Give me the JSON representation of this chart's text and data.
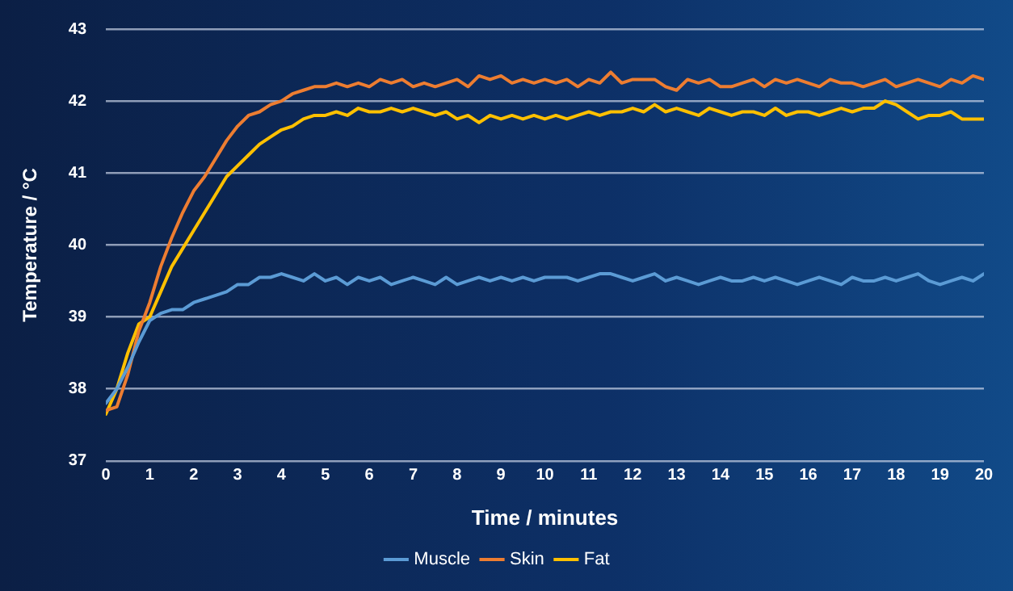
{
  "chart_data": {
    "type": "line",
    "xlabel": "Time / minutes",
    "ylabel": "Temperature / °C",
    "x": [
      0,
      0.25,
      0.5,
      0.75,
      1,
      1.25,
      1.5,
      1.75,
      2,
      2.25,
      2.5,
      2.75,
      3,
      3.25,
      3.5,
      3.75,
      4,
      4.25,
      4.5,
      4.75,
      5,
      5.25,
      5.5,
      5.75,
      6,
      6.25,
      6.5,
      6.75,
      7,
      7.25,
      7.5,
      7.75,
      8,
      8.25,
      8.5,
      8.75,
      9,
      9.25,
      9.5,
      9.75,
      10,
      10.25,
      10.5,
      10.75,
      11,
      11.25,
      11.5,
      11.75,
      12,
      12.25,
      12.5,
      12.75,
      13,
      13.25,
      13.5,
      13.75,
      14,
      14.25,
      14.5,
      14.75,
      15,
      15.25,
      15.5,
      15.75,
      16,
      16.25,
      16.5,
      16.75,
      17,
      17.25,
      17.5,
      17.75,
      18,
      18.25,
      18.5,
      18.75,
      19,
      19.25,
      19.5,
      19.75,
      20
    ],
    "series": [
      {
        "name": "Muscle",
        "color": "#5b9bd5",
        "values": [
          37.8,
          38.0,
          38.3,
          38.65,
          38.95,
          39.05,
          39.1,
          39.1,
          39.2,
          39.25,
          39.3,
          39.35,
          39.45,
          39.45,
          39.55,
          39.55,
          39.6,
          39.55,
          39.5,
          39.6,
          39.5,
          39.55,
          39.45,
          39.55,
          39.5,
          39.55,
          39.45,
          39.5,
          39.55,
          39.5,
          39.45,
          39.55,
          39.45,
          39.5,
          39.55,
          39.5,
          39.55,
          39.5,
          39.55,
          39.5,
          39.55,
          39.55,
          39.55,
          39.5,
          39.55,
          39.6,
          39.6,
          39.55,
          39.5,
          39.55,
          39.6,
          39.5,
          39.55,
          39.5,
          39.45,
          39.5,
          39.55,
          39.5,
          39.5,
          39.55,
          39.5,
          39.55,
          39.5,
          39.45,
          39.5,
          39.55,
          39.5,
          39.45,
          39.55,
          39.5,
          39.5,
          39.55,
          39.5,
          39.55,
          39.6,
          39.5,
          39.45,
          39.5,
          39.55,
          39.5,
          39.6
        ]
      },
      {
        "name": "Skin",
        "color": "#ed7d31",
        "values": [
          37.7,
          37.75,
          38.2,
          38.8,
          39.2,
          39.7,
          40.1,
          40.45,
          40.75,
          40.95,
          41.2,
          41.45,
          41.65,
          41.8,
          41.85,
          41.95,
          42.0,
          42.1,
          42.15,
          42.2,
          42.2,
          42.25,
          42.2,
          42.25,
          42.2,
          42.3,
          42.25,
          42.3,
          42.2,
          42.25,
          42.2,
          42.25,
          42.3,
          42.2,
          42.35,
          42.3,
          42.35,
          42.25,
          42.3,
          42.25,
          42.3,
          42.25,
          42.3,
          42.2,
          42.3,
          42.25,
          42.4,
          42.25,
          42.3,
          42.3,
          42.3,
          42.2,
          42.15,
          42.3,
          42.25,
          42.3,
          42.2,
          42.2,
          42.25,
          42.3,
          42.2,
          42.3,
          42.25,
          42.3,
          42.25,
          42.2,
          42.3,
          42.25,
          42.25,
          42.2,
          42.25,
          42.3,
          42.2,
          42.25,
          42.3,
          42.25,
          42.2,
          42.3,
          42.25,
          42.35,
          42.3
        ]
      },
      {
        "name": "Fat",
        "color": "#ffc000",
        "values": [
          37.65,
          38.0,
          38.5,
          38.9,
          39.0,
          39.35,
          39.7,
          39.95,
          40.2,
          40.45,
          40.7,
          40.95,
          41.1,
          41.25,
          41.4,
          41.5,
          41.6,
          41.65,
          41.75,
          41.8,
          41.8,
          41.85,
          41.8,
          41.9,
          41.85,
          41.85,
          41.9,
          41.85,
          41.9,
          41.85,
          41.8,
          41.85,
          41.75,
          41.8,
          41.7,
          41.8,
          41.75,
          41.8,
          41.75,
          41.8,
          41.75,
          41.8,
          41.75,
          41.8,
          41.85,
          41.8,
          41.85,
          41.85,
          41.9,
          41.85,
          41.95,
          41.85,
          41.9,
          41.85,
          41.8,
          41.9,
          41.85,
          41.8,
          41.85,
          41.85,
          41.8,
          41.9,
          41.8,
          41.85,
          41.85,
          41.8,
          41.85,
          41.9,
          41.85,
          41.9,
          41.9,
          42.0,
          41.95,
          41.85,
          41.75,
          41.8,
          41.8,
          41.85,
          41.75,
          41.75,
          41.75
        ]
      }
    ],
    "xlim": [
      0,
      20
    ],
    "xticks": [
      0,
      1,
      2,
      3,
      4,
      5,
      6,
      7,
      8,
      9,
      10,
      11,
      12,
      13,
      14,
      15,
      16,
      17,
      18,
      19,
      20
    ],
    "ylim": [
      37,
      43
    ],
    "yticks": [
      37,
      38,
      39,
      40,
      41,
      42,
      43
    ],
    "grid": "y",
    "legend": "bottom",
    "marker": "none",
    "line_style": "solid"
  }
}
